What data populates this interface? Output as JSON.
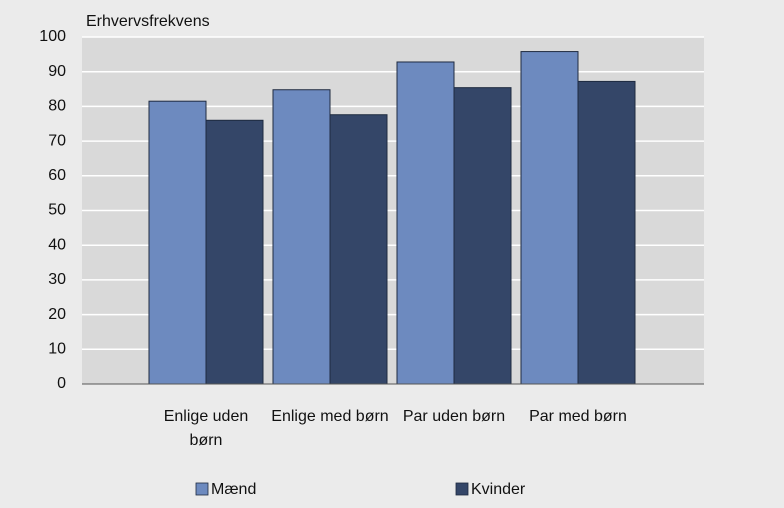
{
  "chart_data": {
    "type": "bar",
    "y_label": "Erhvervsfrekvens",
    "categories": [
      "Enlige uden børn",
      "Enlige med børn",
      "Par uden børn",
      "Par med børn"
    ],
    "series": [
      {
        "name": "Mænd",
        "color": "#6d8abf",
        "values": [
          81.5,
          84.8,
          92.8,
          95.8
        ]
      },
      {
        "name": "Kvinder",
        "color": "#344668",
        "values": [
          76,
          77.6,
          85.4,
          87.2
        ]
      }
    ],
    "ylim": [
      0,
      100
    ],
    "yticks": [
      0,
      10,
      20,
      30,
      40,
      50,
      60,
      70,
      80,
      90,
      100
    ],
    "grid": true,
    "legend": "bottom"
  }
}
